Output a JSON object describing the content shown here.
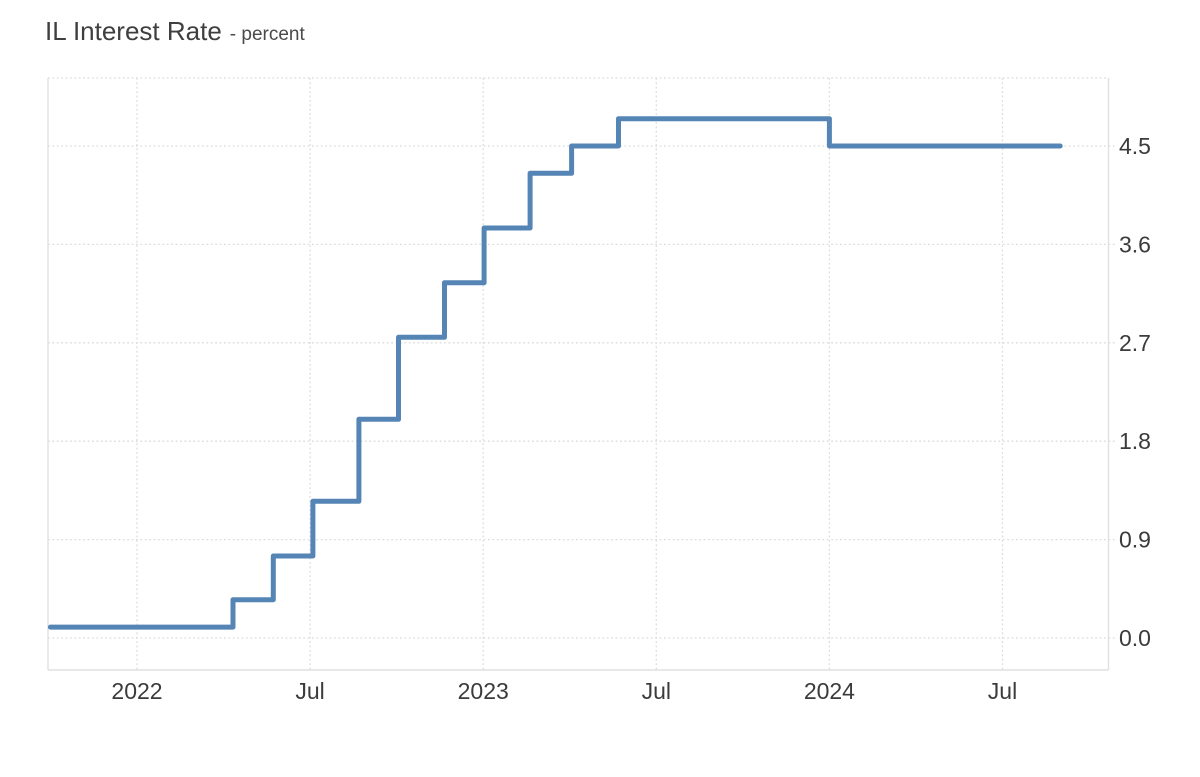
{
  "header": {
    "title": "IL Interest Rate",
    "subtitle": "- percent"
  },
  "chart_data": {
    "type": "line",
    "step": true,
    "title": "IL Interest Rate",
    "unit": "percent",
    "legend": false,
    "grid": "dotted",
    "x_range": {
      "start": "2021-10-01",
      "end": "2024-09-01"
    },
    "y_range": [
      -0.29,
      5.12
    ],
    "y_gridline_step": 0.9,
    "x_ticks": [
      {
        "label": "2022",
        "date": "2022-01-01"
      },
      {
        "label": "Jul",
        "date": "2022-07-01"
      },
      {
        "label": "2023",
        "date": "2023-01-01"
      },
      {
        "label": "Jul",
        "date": "2023-07-01"
      },
      {
        "label": "2024",
        "date": "2024-01-01"
      },
      {
        "label": "Jul",
        "date": "2024-07-01"
      }
    ],
    "y_ticks": [
      {
        "label": "4.5",
        "value": 4.5
      },
      {
        "label": "3.6",
        "value": 3.6
      },
      {
        "label": "2.7",
        "value": 2.7
      },
      {
        "label": "1.8",
        "value": 1.8
      },
      {
        "label": "0.9",
        "value": 0.9
      },
      {
        "label": "0.0",
        "value": 0.0
      }
    ],
    "series": [
      {
        "name": "IL Interest Rate",
        "points": [
          {
            "date": "2021-10-01",
            "value": 0.1
          },
          {
            "date": "2022-04-11",
            "value": 0.35
          },
          {
            "date": "2022-05-23",
            "value": 0.75
          },
          {
            "date": "2022-07-04",
            "value": 1.25
          },
          {
            "date": "2022-08-22",
            "value": 2.0
          },
          {
            "date": "2022-10-03",
            "value": 2.75
          },
          {
            "date": "2022-11-21",
            "value": 3.25
          },
          {
            "date": "2023-01-02",
            "value": 3.75
          },
          {
            "date": "2023-02-20",
            "value": 4.25
          },
          {
            "date": "2023-04-03",
            "value": 4.5
          },
          {
            "date": "2023-05-22",
            "value": 4.75
          },
          {
            "date": "2024-01-01",
            "value": 4.5
          },
          {
            "date": "2024-09-01",
            "value": 4.5
          }
        ]
      }
    ],
    "colors": {
      "line": "#5585b5",
      "grid_dotted": "#dcdcdc",
      "axis_border": "#e0e0e0",
      "tick_text": "#3b3b3b",
      "title_text": "#3f3f3f"
    }
  }
}
